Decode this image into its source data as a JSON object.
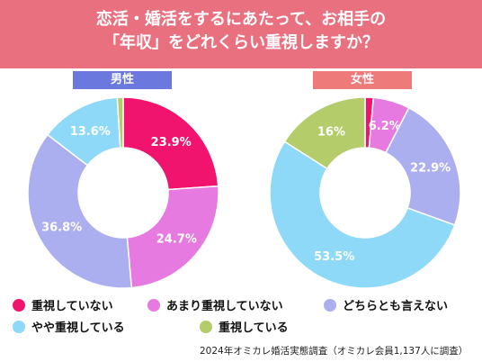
{
  "header": {
    "line1": "恋活・婚活をするにあたって、お相手の",
    "line2": "「年収」をどれくらい重視しますか？"
  },
  "source": "2024年オミカレ婚活実態調査（オミカレ会員1,137人に調査）",
  "colors": {
    "header_bg": "#e8707f",
    "male_tag": "#6b78dd",
    "female_tag": "#ef7a7a"
  },
  "legend": [
    {
      "label": "重視していない",
      "color": "#f0146e"
    },
    {
      "label": "あまり重視していない",
      "color": "#e67ae0"
    },
    {
      "label": "どちらとも言えない",
      "color": "#acafef"
    },
    {
      "label": "やや重視している",
      "color": "#8ed9f8"
    },
    {
      "label": "重視している",
      "color": "#b4cc6a"
    }
  ],
  "chart_data": [
    {
      "type": "pie",
      "title": "男性",
      "categories": [
        "重視していない",
        "あまり重視していない",
        "どちらとも言えない",
        "やや重視している",
        "重視している"
      ],
      "values": [
        23.9,
        24.7,
        36.8,
        13.6,
        1.0
      ],
      "labels": [
        "23.9%",
        "24.7%",
        "36.8%",
        "13.6%",
        ""
      ]
    },
    {
      "type": "pie",
      "title": "女性",
      "categories": [
        "重視していない",
        "あまり重視していない",
        "どちらとも言えない",
        "やや重視している",
        "重視している"
      ],
      "values": [
        1.4,
        6.2,
        22.9,
        53.5,
        16.0
      ],
      "labels": [
        "",
        "6.2%",
        "22.9%",
        "53.5%",
        "16%"
      ]
    }
  ]
}
